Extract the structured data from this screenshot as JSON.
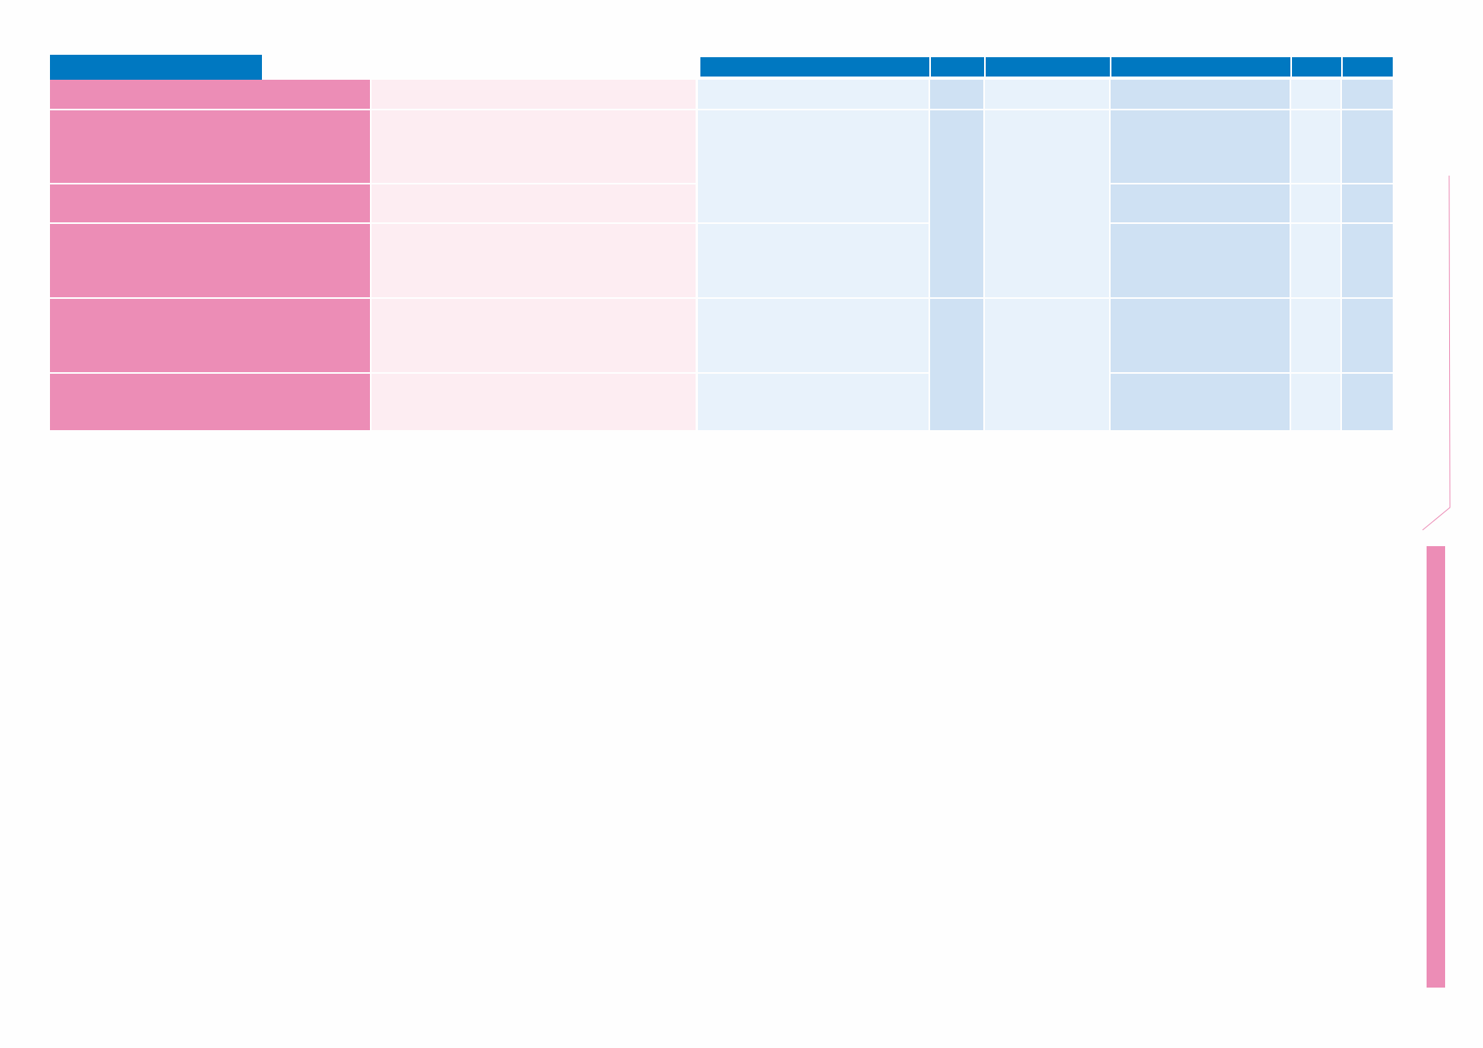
{
  "colors": {
    "header_blue": "#0078C1",
    "pink": "#EC8DB6",
    "pale_pink": "#FDEDF2",
    "light_blue": "#E8F2FB",
    "mid_blue": "#CFE1F3",
    "background": "#FEFEFE"
  },
  "document": {
    "header_tab_text": "",
    "column_headers": [
      "",
      "",
      "",
      "",
      "",
      ""
    ],
    "row_labels": [
      "",
      "",
      "",
      "",
      "",
      ""
    ],
    "row_descriptions": [
      "",
      "",
      "",
      "",
      "",
      ""
    ]
  }
}
